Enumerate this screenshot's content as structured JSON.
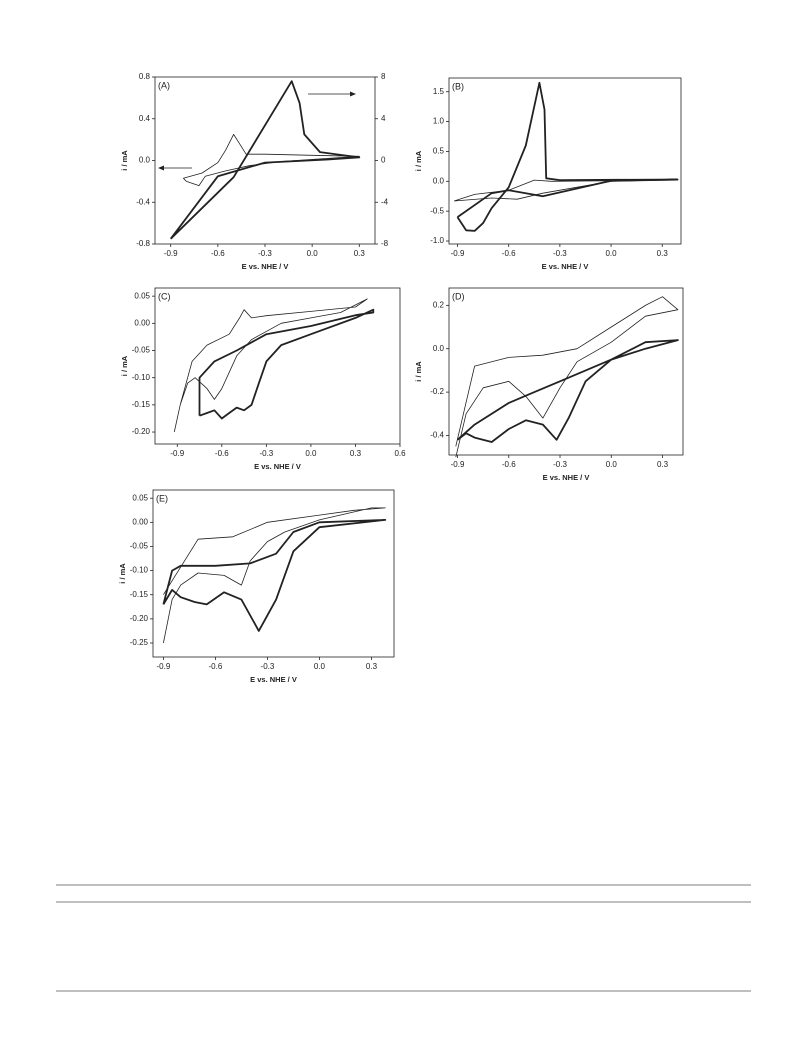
{
  "chart_data": [
    {
      "type": "line",
      "panel_label": "(A)",
      "xlabel": "E vs. NHE / V",
      "ylabel": "i / mA",
      "xlim": [
        -1.0,
        0.4
      ],
      "xticks": [
        -0.9,
        -0.6,
        -0.3,
        {
          "value": 0,
          "label": "0.0"
        },
        0.3
      ],
      "ylim": [
        -0.8,
        0.8
      ],
      "yticks": [
        -0.8,
        -0.4,
        {
          "value": 0,
          "label": "0.0"
        },
        0.4,
        0.8
      ],
      "y2lim": [
        -8,
        8
      ],
      "y2ticks": [
        -8,
        -4,
        0,
        4,
        8
      ],
      "series": [
        {
          "color": "#222222",
          "line_width": 0.8,
          "x": [
            -0.82,
            -0.7,
            -0.6,
            -0.55,
            -0.5,
            -0.47,
            -0.42,
            -0.3,
            0,
            0.3,
            0.1,
            -0.2,
            -0.4,
            -0.55,
            -0.68,
            -0.72,
            -0.8,
            -0.82
          ],
          "values": [
            -0.17,
            -0.12,
            -0.02,
            0.1,
            0.25,
            0.18,
            0.06,
            0.06,
            0.05,
            0.04,
            0.02,
            -0.01,
            -0.05,
            -0.1,
            -0.15,
            -0.24,
            -0.2,
            -0.17
          ]
        },
        {
          "color": "#222222",
          "line_width": 1.8,
          "axis": "y2",
          "x": [
            -0.9,
            -0.5,
            -0.13,
            -0.08,
            -0.05,
            0.05,
            0.3,
            0.1,
            -0.3,
            -0.6,
            -0.9
          ],
          "values": [
            -7.5,
            -1.6,
            7.6,
            5.5,
            2.5,
            0.8,
            0.3,
            0.1,
            -0.2,
            -1.5,
            -7.5
          ]
        }
      ]
    },
    {
      "type": "line",
      "panel_label": "(B)",
      "xlabel": "E vs. NHE / V",
      "ylabel": "i / mA",
      "xlim": [
        -0.95,
        0.41
      ],
      "xticks": [
        -0.9,
        -0.6,
        -0.3,
        {
          "value": 0,
          "label": "0.0"
        },
        0.3
      ],
      "ylim": [
        -1.05,
        1.73
      ],
      "yticks": [
        {
          "value": -1,
          "label": "-1.0"
        },
        -0.5,
        {
          "value": 0,
          "label": "0.0"
        },
        0.5,
        {
          "value": 1,
          "label": "1.0"
        },
        1.5
      ],
      "series": [
        {
          "color": "#222222",
          "line_width": 0.8,
          "x": [
            -0.92,
            -0.8,
            -0.6,
            -0.45,
            -0.35,
            0.39,
            0,
            -0.4,
            -0.55,
            -0.7,
            -0.92
          ],
          "values": [
            -0.33,
            -0.22,
            -0.15,
            0.02,
            0,
            0.02,
            0,
            -0.2,
            -0.3,
            -0.28,
            -0.33
          ]
        },
        {
          "color": "#222222",
          "line_width": 1.8,
          "x": [
            -0.9,
            -0.85,
            -0.8,
            -0.75,
            -0.7,
            -0.6,
            -0.5,
            -0.42,
            -0.39,
            -0.38,
            -0.3,
            0.39,
            0,
            -0.4,
            -0.5,
            -0.6,
            -0.7,
            -0.9
          ],
          "values": [
            -0.6,
            -0.82,
            -0.83,
            -0.7,
            -0.45,
            -0.1,
            0.6,
            1.65,
            1.2,
            0.05,
            0.02,
            0.03,
            0.01,
            -0.25,
            -0.2,
            -0.15,
            -0.2,
            -0.6
          ]
        }
      ]
    },
    {
      "type": "line",
      "panel_label": "(C)",
      "xlabel": "E vs. NHE / V",
      "ylabel": "i / mA",
      "xlim": [
        -1.05,
        0.6
      ],
      "xticks": [
        -0.9,
        -0.6,
        -0.3,
        {
          "value": 0,
          "label": "0.0"
        },
        0.3,
        0.6
      ],
      "ylim": [
        -0.222,
        0.065
      ],
      "yticks": [
        {
          "value": -0.2,
          "label": "-0.20"
        },
        -0.15,
        {
          "value": -0.1,
          "label": "-0.10"
        },
        -0.05,
        {
          "value": 0,
          "label": "0.00"
        },
        0.05
      ],
      "series": [
        {
          "color": "#222222",
          "line_width": 0.8,
          "x": [
            -0.92,
            -0.88,
            -0.83,
            -0.78,
            -0.7,
            -0.65,
            -0.6,
            -0.5,
            -0.4,
            -0.2,
            0,
            0.2,
            0.38,
            0.3,
            0,
            -0.3,
            -0.4,
            -0.45,
            -0.48,
            -0.55,
            -0.7,
            -0.8,
            -0.88
          ],
          "values": [
            -0.2,
            -0.15,
            -0.11,
            -0.1,
            -0.12,
            -0.14,
            -0.12,
            -0.06,
            -0.03,
            0,
            0.01,
            0.02,
            0.045,
            0.03,
            0.022,
            0.014,
            0.01,
            0.025,
            0.01,
            -0.02,
            -0.04,
            -0.07,
            -0.15
          ]
        },
        {
          "color": "#222222",
          "line_width": 1.8,
          "x": [
            -0.75,
            -0.7,
            -0.65,
            -0.6,
            -0.55,
            -0.5,
            -0.45,
            -0.4,
            -0.35,
            -0.3,
            -0.2,
            0,
            0.3,
            0.42,
            0.42,
            0.3,
            0,
            -0.3,
            -0.5,
            -0.65,
            -0.75,
            -0.75
          ],
          "values": [
            -0.17,
            -0.165,
            -0.16,
            -0.175,
            -0.165,
            -0.155,
            -0.16,
            -0.15,
            -0.11,
            -0.07,
            -0.04,
            -0.02,
            0.01,
            0.025,
            0.02,
            0.015,
            -0.005,
            -0.02,
            -0.05,
            -0.07,
            -0.1,
            -0.17
          ]
        }
      ]
    },
    {
      "type": "line",
      "panel_label": "(D)",
      "xlabel": "E vs. NHE / V",
      "ylabel": "i / mA",
      "xlim": [
        -0.95,
        0.42
      ],
      "xticks": [
        -0.9,
        -0.6,
        -0.3,
        {
          "value": 0,
          "label": "0.0"
        },
        0.3
      ],
      "ylim": [
        -0.49,
        0.28
      ],
      "yticks": [
        -0.4,
        -0.2,
        {
          "value": 0,
          "label": "0.0"
        },
        0.2
      ],
      "series": [
        {
          "color": "#222222",
          "line_width": 0.8,
          "x": [
            -0.91,
            -0.85,
            -0.75,
            -0.6,
            -0.5,
            -0.4,
            -0.3,
            -0.2,
            0,
            0.2,
            0.39,
            0.3,
            0.2,
            0,
            -0.2,
            -0.4,
            -0.6,
            -0.8,
            -0.91
          ],
          "values": [
            -0.5,
            -0.3,
            -0.18,
            -0.15,
            -0.22,
            -0.32,
            -0.18,
            -0.06,
            0.03,
            0.15,
            0.18,
            0.24,
            0.2,
            0.1,
            0,
            -0.03,
            -0.04,
            -0.08,
            -0.45
          ]
        },
        {
          "color": "#222222",
          "line_width": 1.8,
          "x": [
            -0.9,
            -0.85,
            -0.8,
            -0.7,
            -0.6,
            -0.5,
            -0.4,
            -0.32,
            -0.25,
            -0.15,
            0,
            0.2,
            0.39,
            0.2,
            0,
            -0.3,
            -0.45,
            -0.6,
            -0.8,
            -0.9
          ],
          "values": [
            -0.42,
            -0.39,
            -0.41,
            -0.43,
            -0.37,
            -0.33,
            -0.35,
            -0.42,
            -0.32,
            -0.15,
            -0.05,
            0.03,
            0.04,
            0,
            -0.05,
            -0.15,
            -0.2,
            -0.25,
            -0.35,
            -0.42
          ]
        }
      ]
    },
    {
      "type": "line",
      "panel_label": "(E)",
      "xlabel": "E vs. NHE / V",
      "ylabel": "i / mA",
      "xlim": [
        -0.96,
        0.43
      ],
      "xticks": [
        -0.9,
        -0.6,
        -0.3,
        {
          "value": 0,
          "label": "0.0"
        },
        0.3
      ],
      "ylim": [
        -0.279,
        0.067
      ],
      "yticks": [
        -0.25,
        {
          "value": -0.2,
          "label": "-0.20"
        },
        -0.15,
        {
          "value": -0.1,
          "label": "-0.10"
        },
        -0.05,
        {
          "value": 0,
          "label": "0.00"
        },
        0.05
      ],
      "series": [
        {
          "color": "#222222",
          "line_width": 0.8,
          "x": [
            -0.9,
            -0.85,
            -0.8,
            -0.7,
            -0.55,
            -0.45,
            -0.4,
            -0.3,
            -0.2,
            0,
            0.3,
            0.38,
            0.2,
            0,
            -0.3,
            -0.5,
            -0.7,
            -0.9
          ],
          "values": [
            -0.25,
            -0.16,
            -0.13,
            -0.105,
            -0.11,
            -0.13,
            -0.08,
            -0.04,
            -0.02,
            0.005,
            0.03,
            0.03,
            0.025,
            0.015,
            0,
            -0.03,
            -0.035,
            -0.15
          ]
        },
        {
          "color": "#222222",
          "line_width": 1.8,
          "x": [
            -0.9,
            -0.85,
            -0.8,
            -0.6,
            -0.4,
            -0.25,
            -0.15,
            0,
            0.38,
            0,
            -0.15,
            -0.25,
            -0.35,
            -0.45,
            -0.55,
            -0.65,
            -0.72,
            -0.8,
            -0.85,
            -0.9
          ],
          "values": [
            -0.17,
            -0.1,
            -0.09,
            -0.09,
            -0.085,
            -0.065,
            -0.02,
            0,
            0.005,
            -0.01,
            -0.06,
            -0.16,
            -0.225,
            -0.16,
            -0.145,
            -0.17,
            -0.165,
            -0.155,
            -0.14,
            -0.17
          ]
        }
      ]
    }
  ]
}
